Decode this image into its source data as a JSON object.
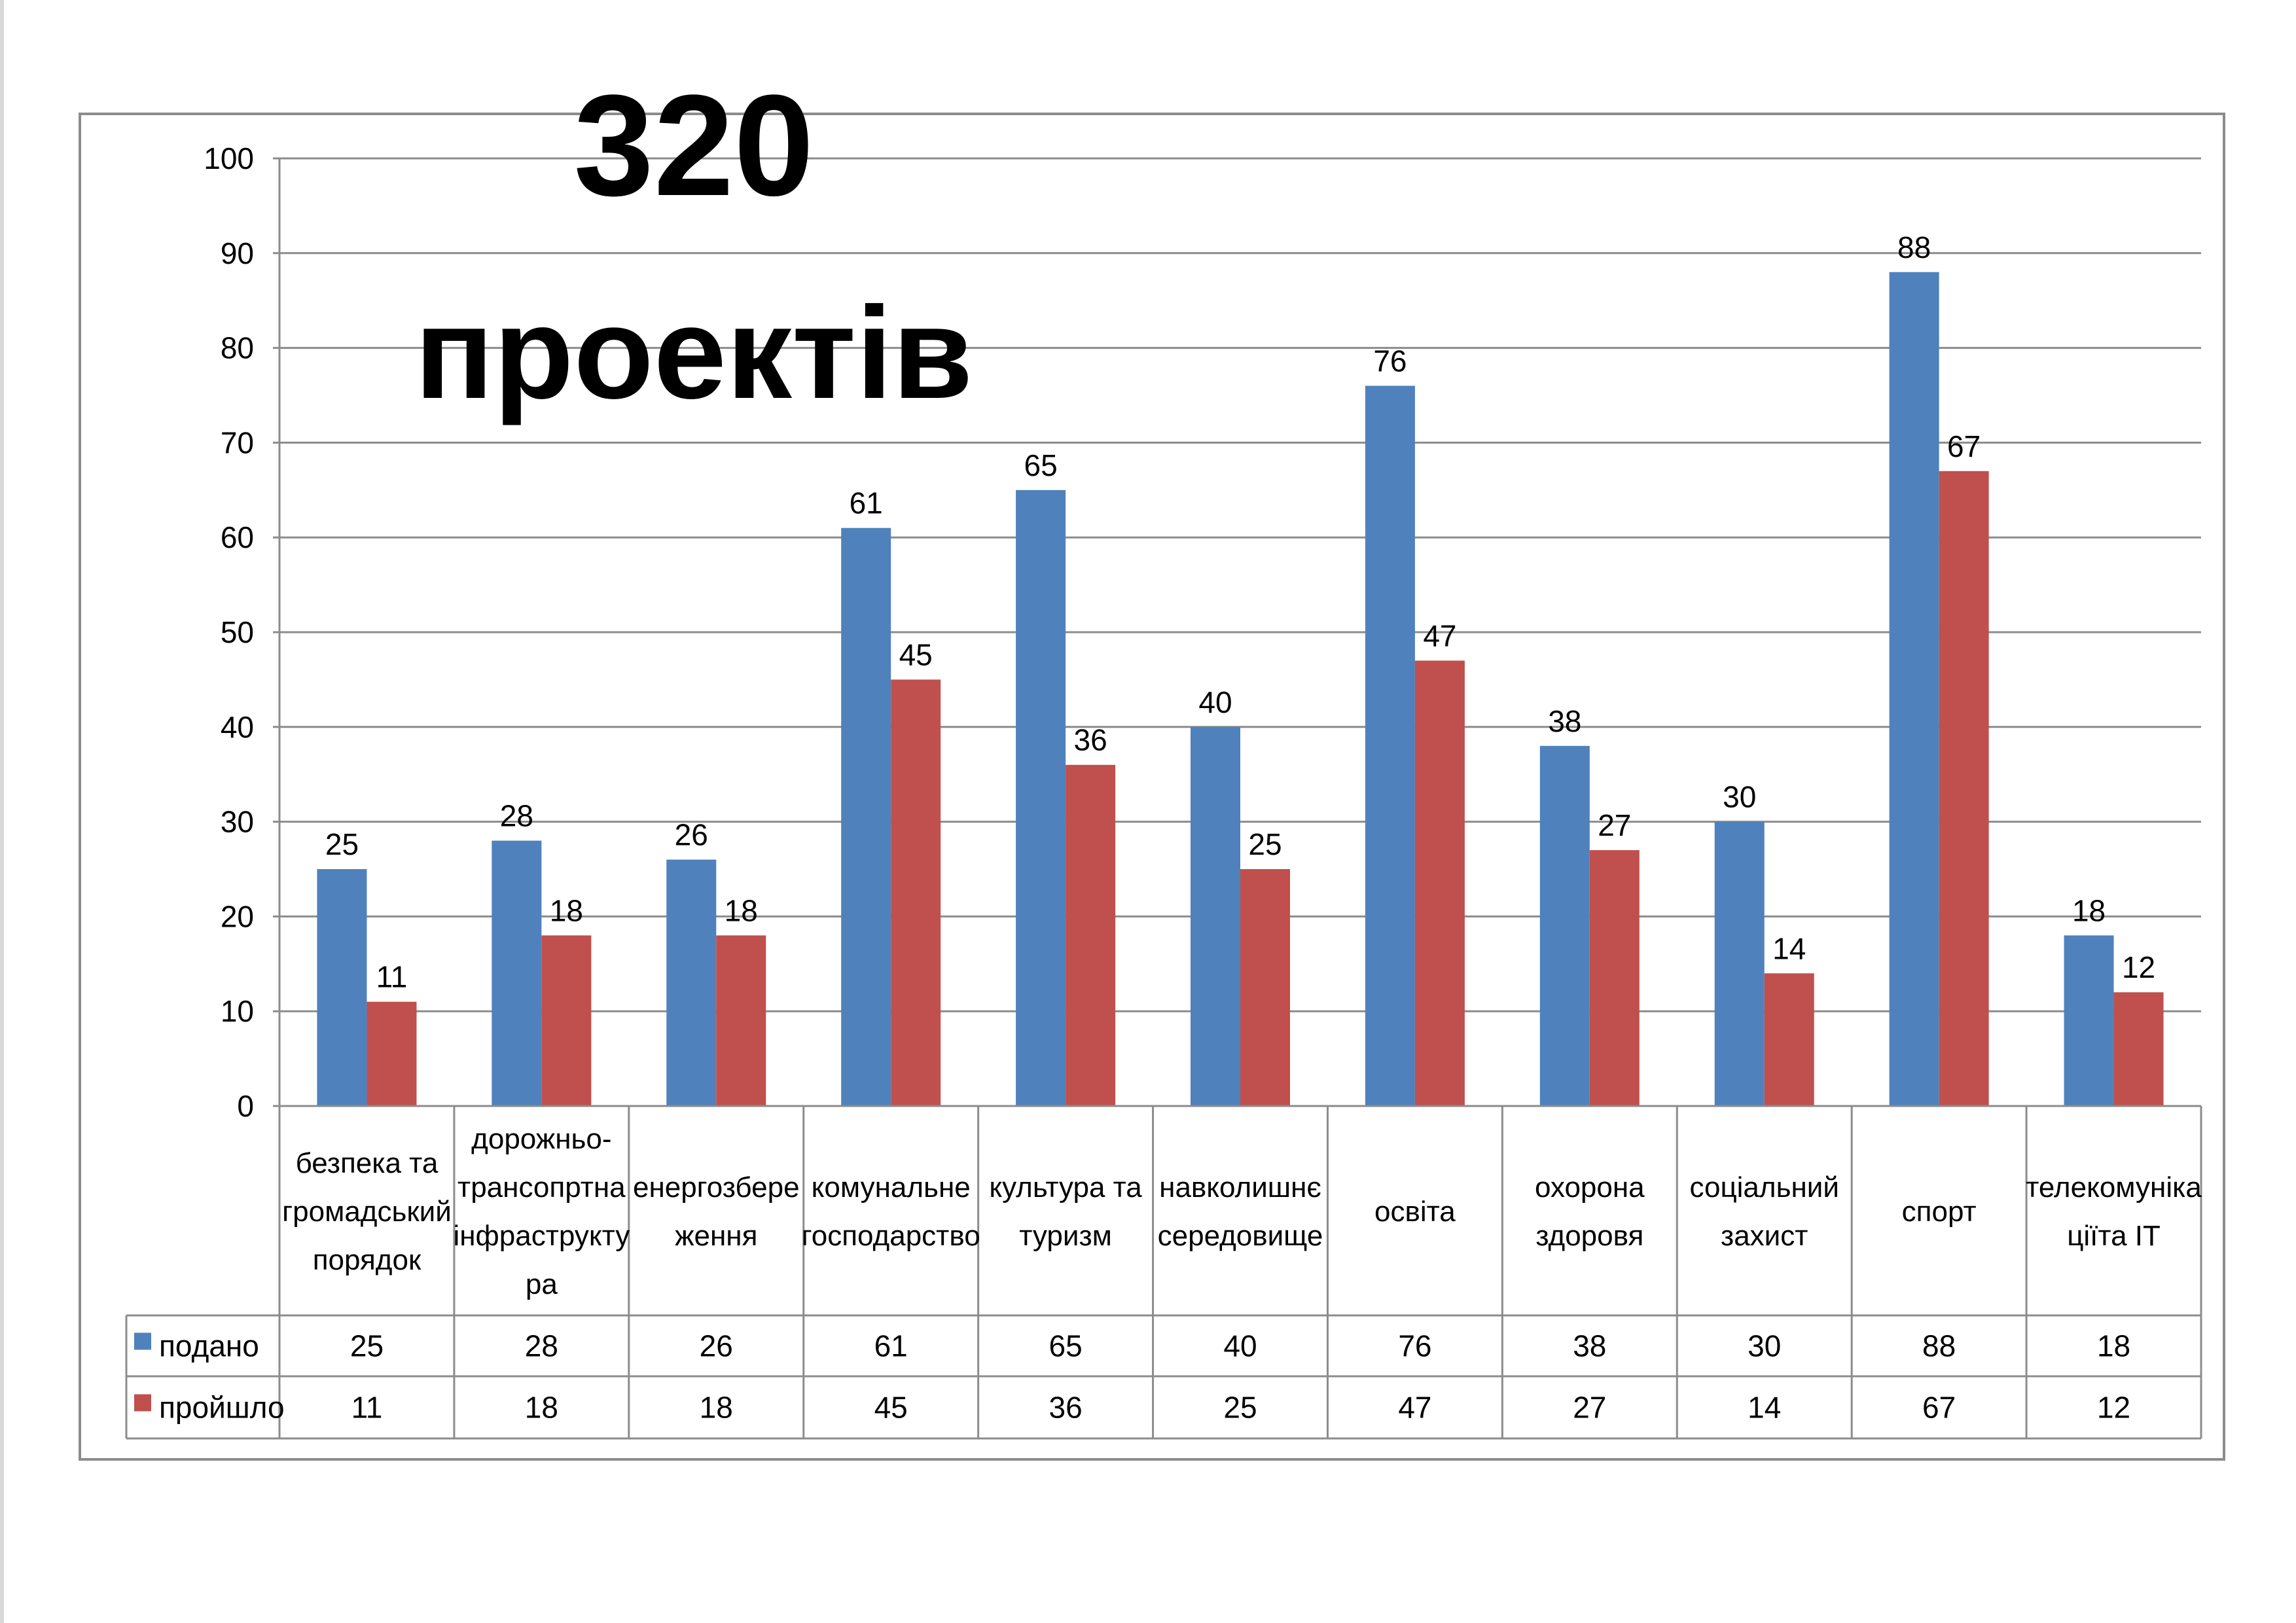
{
  "title": {
    "line1": "320",
    "line2": "проектів"
  },
  "colors": {
    "podano": "#4f81bd",
    "proishlo": "#c0504d",
    "grid": "#8c8c8c"
  },
  "chart_data": {
    "type": "bar",
    "categories": [
      [
        "безпека та",
        "громадський",
        "порядок"
      ],
      [
        "дорожньо-",
        "трансопртна",
        "інфраструкту",
        "ра"
      ],
      [
        "енергозбере",
        "ження"
      ],
      [
        "комунальне",
        "господарство"
      ],
      [
        "культура та",
        "туризм"
      ],
      [
        "навколишнє",
        "середовище"
      ],
      [
        "освіта"
      ],
      [
        "охорона",
        "здоровя"
      ],
      [
        "соціальний",
        "захист"
      ],
      [
        "спорт"
      ],
      [
        "телекомуніка",
        "ціїта ІТ"
      ]
    ],
    "series": [
      {
        "name": "подано",
        "values": [
          25,
          28,
          26,
          61,
          65,
          40,
          76,
          38,
          30,
          88,
          18
        ]
      },
      {
        "name": "пройшло",
        "values": [
          11,
          18,
          18,
          45,
          36,
          25,
          47,
          27,
          14,
          67,
          12
        ]
      }
    ],
    "ylim": [
      0,
      100
    ],
    "yticks": [
      "0",
      "10",
      "20",
      "30",
      "40",
      "50",
      "60",
      "70",
      "80",
      "90",
      "100"
    ],
    "grid": true,
    "legend": "data-table-bottom"
  }
}
